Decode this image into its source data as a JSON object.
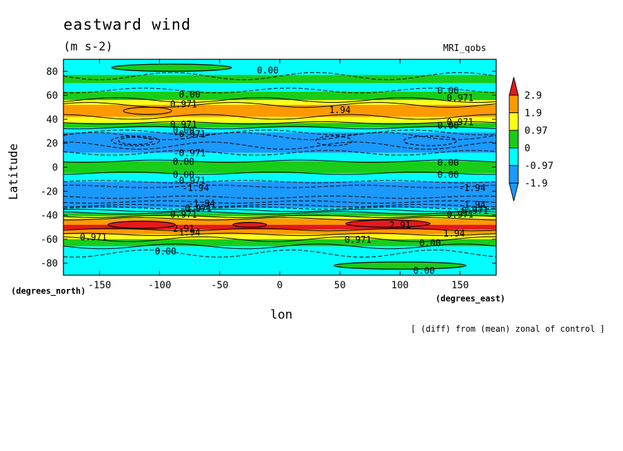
{
  "chart_data": {
    "type": "contour",
    "title": "eastward wind",
    "units": "(m s-2)",
    "model": "MRI_qobs",
    "xlabel": "lon",
    "ylabel": "Latitude",
    "x_units": "(degrees_east)",
    "y_units": "(degrees_north)",
    "footnote": "[ (diff) from (mean) zonal of control ]",
    "xlim": [
      -180,
      180
    ],
    "ylim": [
      -90,
      90
    ],
    "xticks": [
      "-150",
      "-100",
      "-50",
      "0",
      "50",
      "100",
      "150"
    ],
    "xtick_values": [
      -150,
      -100,
      -50,
      0,
      50,
      100,
      150
    ],
    "yticks": [
      "80",
      "60",
      "40",
      "20",
      "0",
      "-20",
      "-40",
      "-60",
      "-80"
    ],
    "ytick_values": [
      80,
      60,
      40,
      20,
      0,
      -20,
      -40,
      -60,
      -80
    ],
    "colorbar": {
      "labels": [
        "2.9",
        "1.9",
        "0.97",
        "0",
        "-0.97",
        "-1.9"
      ],
      "levels": [
        2.91,
        1.94,
        0.971,
        0,
        -0.971,
        -1.94
      ],
      "colors": [
        "#e41a1c",
        "#ff9900",
        "#ffff1a",
        "#19cc19",
        "#00ffff",
        "#1a99ff",
        "#1a99ff"
      ]
    },
    "bands": [
      {
        "lat_top": 90,
        "lat_bottom": 77,
        "color": "#00ffff"
      },
      {
        "lat_top": 77,
        "lat_bottom": 70,
        "color": "#19cc19"
      },
      {
        "lat_top": 70,
        "lat_bottom": 63,
        "color": "#00ffff"
      },
      {
        "lat_top": 63,
        "lat_bottom": 56,
        "color": "#19cc19"
      },
      {
        "lat_top": 56,
        "lat_bottom": 52,
        "color": "#ffff1a"
      },
      {
        "lat_top": 52,
        "lat_bottom": 42,
        "color": "#ff9900"
      },
      {
        "lat_top": 42,
        "lat_bottom": 37,
        "color": "#ffff1a"
      },
      {
        "lat_top": 37,
        "lat_bottom": 33,
        "color": "#19cc19"
      },
      {
        "lat_top": 33,
        "lat_bottom": 29,
        "color": "#00ffff"
      },
      {
        "lat_top": 29,
        "lat_bottom": 12,
        "color": "#1a99ff"
      },
      {
        "lat_top": 12,
        "lat_bottom": 5,
        "color": "#00ffff"
      },
      {
        "lat_top": 5,
        "lat_bottom": -5,
        "color": "#19cc19"
      },
      {
        "lat_top": -5,
        "lat_bottom": -12,
        "color": "#00ffff"
      },
      {
        "lat_top": -12,
        "lat_bottom": -34,
        "color": "#1a99ff"
      },
      {
        "lat_top": -34,
        "lat_bottom": -38,
        "color": "#00ffff"
      },
      {
        "lat_top": -38,
        "lat_bottom": -41,
        "color": "#19cc19"
      },
      {
        "lat_top": -41,
        "lat_bottom": -43,
        "color": "#ffff1a"
      },
      {
        "lat_top": -43,
        "lat_bottom": -48,
        "color": "#ff9900"
      },
      {
        "lat_top": -48,
        "lat_bottom": -52,
        "color": "#e41a1c"
      },
      {
        "lat_top": -52,
        "lat_bottom": -56,
        "color": "#ff9900"
      },
      {
        "lat_top": -56,
        "lat_bottom": -60,
        "color": "#ffff1a"
      },
      {
        "lat_top": -60,
        "lat_bottom": -66,
        "color": "#19cc19"
      },
      {
        "lat_top": -66,
        "lat_bottom": -90,
        "color": "#00ffff"
      }
    ],
    "blobs": [
      {
        "lon": -120,
        "lat": 22,
        "rx": 20,
        "ry": 4,
        "color": "#1a99ff"
      },
      {
        "lon": -120,
        "lat": 22,
        "rx": 14,
        "ry": 3,
        "color": "#1a99ff"
      },
      {
        "lon": -110,
        "lat": 47,
        "rx": 20,
        "ry": 3,
        "color": "#ff9900"
      },
      {
        "lon": 45,
        "lat": 22,
        "rx": 15,
        "ry": 4,
        "color": "#1a99ff"
      },
      {
        "lon": 125,
        "lat": 22,
        "rx": 22,
        "ry": 4,
        "color": "#1a99ff"
      },
      {
        "lon": -115,
        "lat": -48,
        "rx": 28,
        "ry": 3,
        "color": "#e41a1c"
      },
      {
        "lon": -25,
        "lat": -48,
        "rx": 14,
        "ry": 2,
        "color": "#e41a1c"
      },
      {
        "lon": 90,
        "lat": -47,
        "rx": 35,
        "ry": 3,
        "color": "#e41a1c"
      },
      {
        "lon": -90,
        "lat": 83,
        "rx": 50,
        "ry": 3,
        "color": "#19cc19"
      },
      {
        "lon": 100,
        "lat": -82,
        "rx": 55,
        "ry": 3,
        "color": "#19cc19"
      }
    ],
    "contour_lines": [
      {
        "lat": 76,
        "amp": 3,
        "dashed": true
      },
      {
        "lat": 64,
        "amp": 2,
        "dashed": true
      },
      {
        "lat": 56,
        "amp": 2,
        "dashed": false
      },
      {
        "lat": 52,
        "amp": 2,
        "dashed": false
      },
      {
        "lat": 42,
        "amp": 2,
        "dashed": false
      },
      {
        "lat": 37,
        "amp": 1,
        "dashed": false
      },
      {
        "lat": 33,
        "amp": 1,
        "dashed": false
      },
      {
        "lat": 29,
        "amp": 2,
        "dashed": true
      },
      {
        "lat": 26,
        "amp": 3,
        "dashed": true
      },
      {
        "lat": 18,
        "amp": 3,
        "dashed": true
      },
      {
        "lat": 12,
        "amp": 2,
        "dashed": true
      },
      {
        "lat": 5,
        "amp": 1,
        "dashed": false
      },
      {
        "lat": -5,
        "amp": 1,
        "dashed": false
      },
      {
        "lat": -12,
        "amp": 1,
        "dashed": true
      },
      {
        "lat": -16,
        "amp": 1,
        "dashed": true
      },
      {
        "lat": -25,
        "amp": 1,
        "dashed": true
      },
      {
        "lat": -29,
        "amp": 1,
        "dashed": true
      },
      {
        "lat": -32,
        "amp": 1,
        "dashed": true
      },
      {
        "lat": -34,
        "amp": 1,
        "dashed": true
      },
      {
        "lat": -36,
        "amp": 1,
        "dashed": false
      },
      {
        "lat": -38,
        "amp": 1,
        "dashed": false
      },
      {
        "lat": -41,
        "amp": 1,
        "dashed": false
      },
      {
        "lat": -43,
        "amp": 1,
        "dashed": false
      },
      {
        "lat": -52,
        "amp": 1,
        "dashed": false
      },
      {
        "lat": -56,
        "amp": 1,
        "dashed": false
      },
      {
        "lat": -60,
        "amp": 2,
        "dashed": false
      },
      {
        "lat": -66,
        "amp": 2,
        "dashed": false
      },
      {
        "lat": -72,
        "amp": 3,
        "dashed": true
      }
    ],
    "contour_labels": [
      {
        "text": "0.00",
        "lon": -10,
        "lat": 81
      },
      {
        "text": "0.00",
        "lon": -75,
        "lat": 61
      },
      {
        "text": "0.00",
        "lon": 140,
        "lat": 64
      },
      {
        "text": "0.971",
        "lon": -80,
        "lat": 53
      },
      {
        "text": "0.971",
        "lon": 150,
        "lat": 58
      },
      {
        "text": "1.94",
        "lon": 50,
        "lat": 48
      },
      {
        "text": "0.971",
        "lon": -80,
        "lat": 36
      },
      {
        "text": "0.971",
        "lon": 150,
        "lat": 38
      },
      {
        "text": "0.00",
        "lon": 140,
        "lat": 35
      },
      {
        "text": "0.00",
        "lon": -80,
        "lat": 31
      },
      {
        "text": "-0.971",
        "lon": -75,
        "lat": 28
      },
      {
        "text": "-0.971",
        "lon": -75,
        "lat": 12
      },
      {
        "text": "0.00",
        "lon": -80,
        "lat": 5
      },
      {
        "text": "0.00",
        "lon": 140,
        "lat": 4
      },
      {
        "text": "0.00",
        "lon": -80,
        "lat": -6
      },
      {
        "text": "0.00",
        "lon": 140,
        "lat": -6
      },
      {
        "text": "-0.971",
        "lon": -75,
        "lat": -11
      },
      {
        "text": "-1.94",
        "lon": -70,
        "lat": -17
      },
      {
        "text": "-1.94",
        "lon": 160,
        "lat": -17
      },
      {
        "text": "-1.94",
        "lon": -65,
        "lat": -30
      },
      {
        "text": "-1.94",
        "lon": 160,
        "lat": -31
      },
      {
        "text": "-0.971",
        "lon": -70,
        "lat": -34
      },
      {
        "text": "-0.971",
        "lon": 160,
        "lat": -36
      },
      {
        "text": "0.971",
        "lon": -80,
        "lat": -39
      },
      {
        "text": "0.971",
        "lon": 150,
        "lat": -39
      },
      {
        "text": "2.91",
        "lon": -80,
        "lat": -51
      },
      {
        "text": "2.91",
        "lon": 100,
        "lat": -48
      },
      {
        "text": "1.94",
        "lon": -75,
        "lat": -54
      },
      {
        "text": "1.94",
        "lon": 145,
        "lat": -55
      },
      {
        "text": "0.971",
        "lon": -155,
        "lat": -58
      },
      {
        "text": "0.971",
        "lon": 65,
        "lat": -60
      },
      {
        "text": "0.00",
        "lon": 125,
        "lat": -63
      },
      {
        "text": "0.00",
        "lon": -95,
        "lat": -70
      },
      {
        "text": "0.00",
        "lon": 120,
        "lat": -86
      }
    ]
  }
}
